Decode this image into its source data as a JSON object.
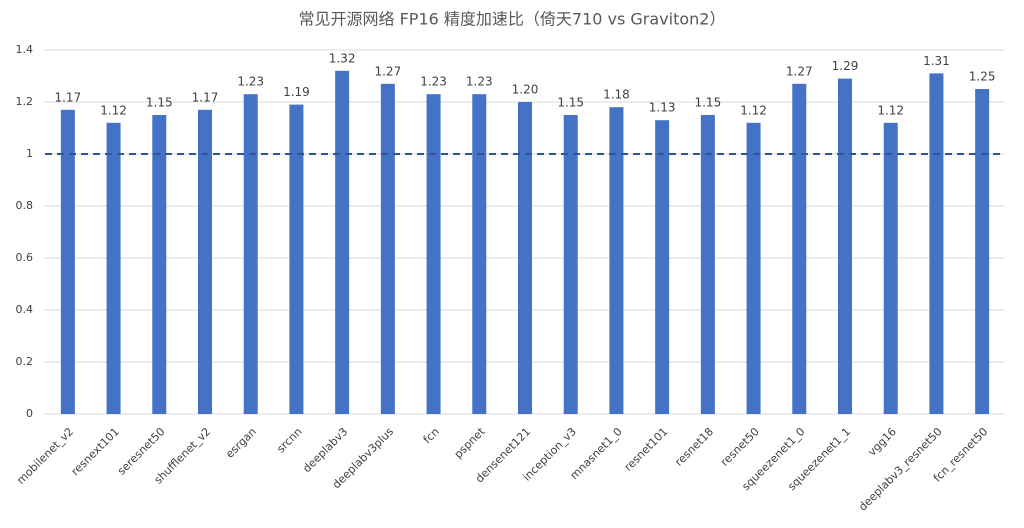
{
  "chart_data": {
    "type": "bar",
    "title": "常见开源网络 FP16 精度加速比（倚天710 vs Graviton2）",
    "categories": [
      "mobilenet_v2",
      "resnext101",
      "seresnet50",
      "shufflenet_v2",
      "esrgan",
      "srcnn",
      "deeplabv3",
      "deeplabv3plus",
      "fcn",
      "pspnet",
      "densenet121",
      "inception_v3",
      "mnasnet1_0",
      "resnet101",
      "resnet18",
      "resnet50",
      "squeezenet1_0",
      "squeezenet1_1",
      "vgg16",
      "deeplabv3_resnet50",
      "fcn_resnet50"
    ],
    "values": [
      1.17,
      1.12,
      1.15,
      1.17,
      1.23,
      1.19,
      1.32,
      1.27,
      1.23,
      1.23,
      1.2,
      1.15,
      1.18,
      1.13,
      1.15,
      1.12,
      1.27,
      1.29,
      1.12,
      1.31,
      1.25
    ],
    "value_labels": [
      "1.17",
      "1.12",
      "1.15",
      "1.17",
      "1.23",
      "1.19",
      "1.32",
      "1.27",
      "1.23",
      "1.23",
      "1.20",
      "1.15",
      "1.18",
      "1.13",
      "1.15",
      "1.12",
      "1.27",
      "1.29",
      "1.12",
      "1.31",
      "1.25"
    ],
    "color": "#4472c4",
    "ylim": [
      0,
      1.4
    ],
    "yticks": [
      0,
      0.2,
      0.4,
      0.6,
      0.8,
      1,
      1.2,
      1.4
    ],
    "grid": true,
    "reference_line": {
      "value": 1,
      "style": "dashed",
      "color": "#2f5597"
    }
  }
}
